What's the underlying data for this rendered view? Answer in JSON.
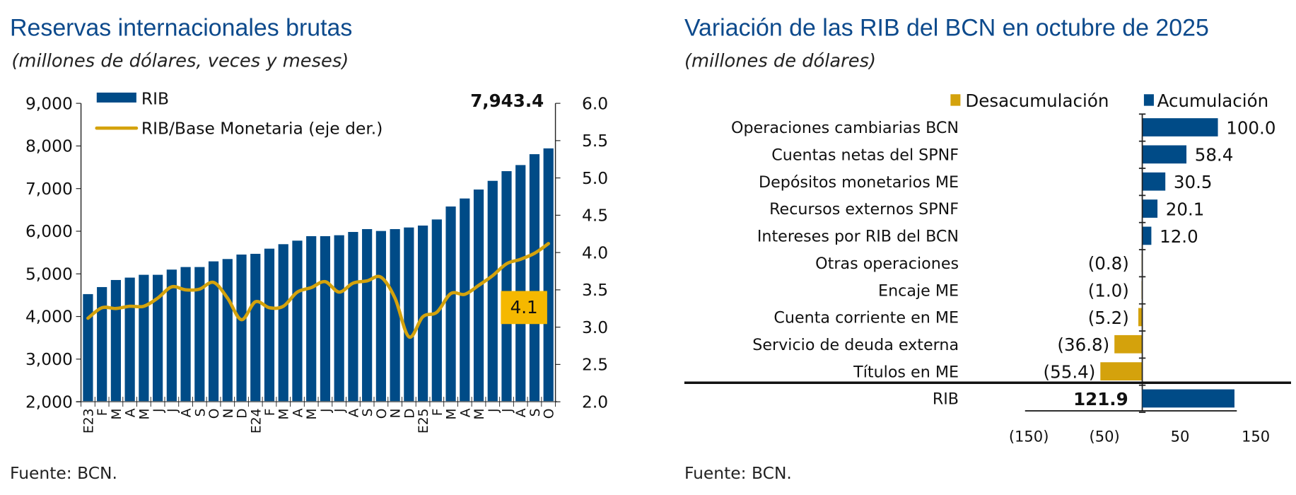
{
  "left": {
    "title": "Reservas internacionales brutas",
    "subtitle": "(millones de dólares, veces y meses)",
    "source": "Fuente: BCN."
  },
  "right": {
    "title": "Variación de las RIB del BCN en octubre de 2025",
    "subtitle": "(millones de dólares)",
    "source": "Fuente: BCN."
  },
  "colors": {
    "bar_blue": "#004b87",
    "line_gold": "#d4a20c",
    "label_box": "#f5b800",
    "title_blue": "#0d4a8c"
  },
  "chart_data": [
    {
      "type": "bar+line",
      "categories": [
        "E23",
        "F",
        "M",
        "A",
        "M",
        "J",
        "J",
        "A",
        "S",
        "O",
        "N",
        "D",
        "E24",
        "F",
        "M",
        "A",
        "M",
        "J",
        "J",
        "A",
        "S",
        "O",
        "N",
        "D",
        "E25",
        "F",
        "M",
        "A",
        "M",
        "J",
        "J",
        "A",
        "S",
        "O"
      ],
      "series": [
        {
          "name": "RIB",
          "type": "bar",
          "axis": "left",
          "values": [
            4525,
            4690,
            4856,
            4912,
            4978,
            4978,
            5100,
            5160,
            5160,
            5293,
            5348,
            5453,
            5470,
            5591,
            5696,
            5779,
            5884,
            5884,
            5906,
            5983,
            6050,
            6006,
            6050,
            6088,
            6133,
            6276,
            6580,
            6768,
            6978,
            7182,
            7409,
            7552,
            7807,
            7943.4
          ]
        },
        {
          "name": "RIB/Base Monetaria (eje der.)",
          "type": "line",
          "axis": "right",
          "values": [
            3.12,
            3.26,
            3.25,
            3.28,
            3.28,
            3.39,
            3.54,
            3.5,
            3.51,
            3.6,
            3.39,
            3.1,
            3.34,
            3.26,
            3.28,
            3.47,
            3.53,
            3.61,
            3.47,
            3.59,
            3.62,
            3.67,
            3.39,
            2.87,
            3.14,
            3.2,
            3.45,
            3.44,
            3.56,
            3.69,
            3.85,
            3.91,
            3.99,
            4.12
          ]
        }
      ],
      "annotations": {
        "last_bar_label": "7,943.4",
        "last_ratio_label": "4.1"
      },
      "yleft": {
        "lim": [
          2000,
          9000
        ],
        "ticks": [
          "2,000",
          "3,000",
          "4,000",
          "5,000",
          "6,000",
          "7,000",
          "8,000",
          "9,000"
        ]
      },
      "yright": {
        "lim": [
          2.0,
          6.0
        ],
        "ticks": [
          "2.0",
          "2.5",
          "3.0",
          "3.5",
          "4.0",
          "4.5",
          "5.0",
          "5.5",
          "6.0"
        ]
      },
      "legend": "top-left",
      "grid": false
    },
    {
      "type": "bar",
      "orientation": "horizontal",
      "categories": [
        "Operaciones cambiarias BCN",
        "Cuentas netas del SPNF",
        "Depósitos monetarios ME",
        "Recursos externos SPNF",
        "Intereses por RIB del BCN",
        "Otras operaciones",
        "Encaje ME",
        "Cuenta corriente en ME",
        "Servicio de deuda externa",
        "Títulos en ME"
      ],
      "values": [
        100.0,
        58.4,
        30.5,
        20.1,
        12.0,
        -0.8,
        -1.0,
        -5.2,
        -36.8,
        -55.4
      ],
      "value_labels": [
        "100.0",
        "58.4",
        "30.5",
        "20.1",
        "12.0",
        "(0.8)",
        "(1.0)",
        "(5.2)",
        "(36.8)",
        "(55.4)"
      ],
      "total": {
        "label": "RIB",
        "value": 121.9,
        "value_label": "121.9"
      },
      "legend": {
        "entries": [
          "Desacumulación",
          "Acumulación"
        ],
        "position": "top-right"
      },
      "xlim": [
        -150,
        150
      ],
      "xticks": [
        "(150)",
        "(50)",
        "50",
        "150"
      ],
      "grid": false
    }
  ]
}
